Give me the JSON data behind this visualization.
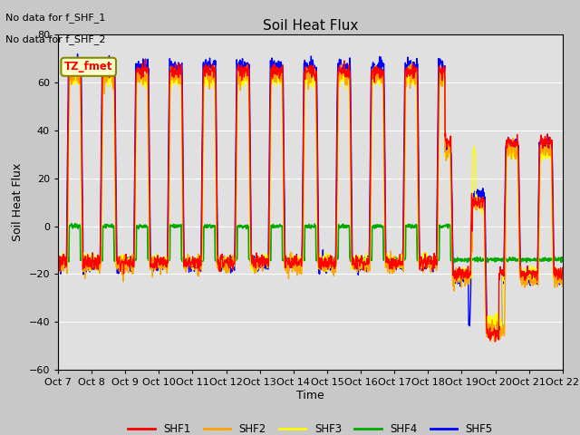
{
  "title": "Soil Heat Flux",
  "ylabel": "Soil Heat Flux",
  "xlabel": "Time",
  "ylim": [
    -60,
    80
  ],
  "yticks": [
    -60,
    -40,
    -20,
    0,
    20,
    40,
    60,
    80
  ],
  "annotations": [
    "No data for f_SHF_1",
    "No data for f_SHF_2"
  ],
  "tz_label": "TZ_fmet",
  "legend_labels": [
    "SHF1",
    "SHF2",
    "SHF3",
    "SHF4",
    "SHF5"
  ],
  "legend_colors": [
    "#ff0000",
    "#ffa500",
    "#ffff00",
    "#00aa00",
    "#0000ff"
  ],
  "background_color": "#c8c8c8",
  "plot_bg_color": "#e0e0e0",
  "x_tick_labels": [
    "Oct 7",
    "Oct 8",
    "Oct 9",
    "Oct 10",
    "Oct 11",
    "Oct 12",
    "Oct 13",
    "Oct 14",
    "Oct 15",
    "Oct 16",
    "Oct 17",
    "Oct 18",
    "Oct 19",
    "Oct 20",
    "Oct 21",
    "Oct 22"
  ],
  "n_points": 1500,
  "dt_days": 15,
  "figsize": [
    6.4,
    4.8
  ],
  "dpi": 100
}
